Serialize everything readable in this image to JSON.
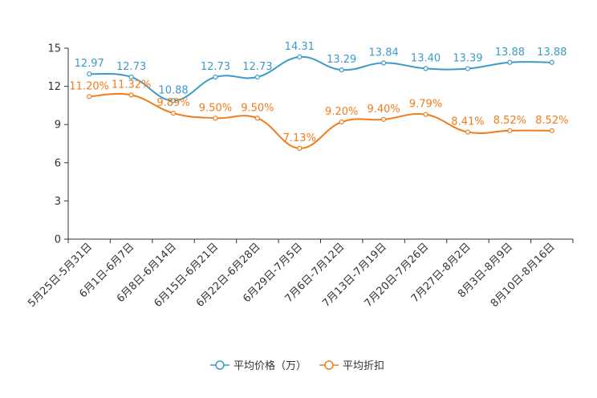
{
  "chart_data": {
    "type": "line",
    "categories": [
      "5月25日-5月31日",
      "6月1日-6月7日",
      "6月8日-6月14日",
      "6月15日-6月21日",
      "6月22日-6月28日",
      "6月29日-7月5日",
      "7月6日-7月12日",
      "7月13日-7月19日",
      "7月20日-7月26日",
      "7月27日-8月2日",
      "8月3日-8月9日",
      "8月10日-8月16日"
    ],
    "ylim": [
      0,
      15
    ],
    "yticks": [
      0,
      3,
      6,
      9,
      12,
      15
    ],
    "series": [
      {
        "name": "平均价格（万）",
        "color": "#3d9ac9",
        "values": [
          12.97,
          12.73,
          10.88,
          12.73,
          12.73,
          14.31,
          13.29,
          13.84,
          13.4,
          13.39,
          13.88,
          13.88
        ],
        "labels": [
          "12.97",
          "12.73",
          "10.88",
          "12.73",
          "12.73",
          "14.31",
          "13.29",
          "13.84",
          "13.40",
          "13.39",
          "13.88",
          "13.88"
        ]
      },
      {
        "name": "平均折扣",
        "color": "#f07c1c",
        "values": [
          11.2,
          11.32,
          9.89,
          9.5,
          9.5,
          7.13,
          9.2,
          9.4,
          9.79,
          8.41,
          8.52,
          8.52
        ],
        "labels": [
          "11.20%",
          "11.32%",
          "9.89%",
          "9.50%",
          "9.50%",
          "7.13%",
          "9.20%",
          "9.40%",
          "9.79%",
          "8.41%",
          "8.52%",
          "8.52%"
        ]
      }
    ],
    "legend": "bottom",
    "grid": false
  }
}
